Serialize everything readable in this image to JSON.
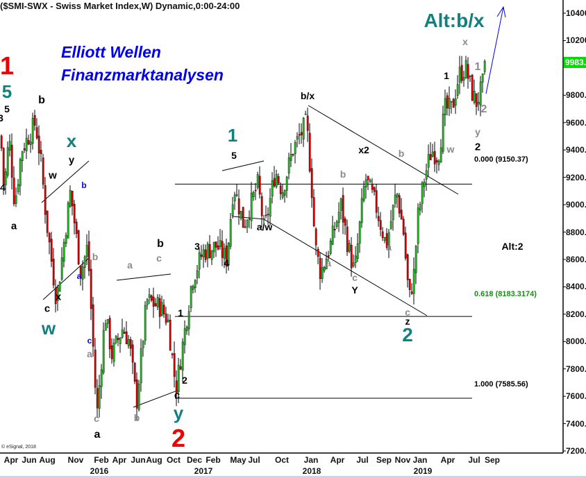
{
  "title": "($SMI-SWX - Swiss Market Index,W) Dynamic,0:00-24:00",
  "branding": {
    "line1": "Elliott Wellen",
    "line2": "Finanzmarktanalysen"
  },
  "copyright": "© eSignal, 2018",
  "colors": {
    "up": "#22bb22",
    "down": "#dd0000",
    "black": "#000000",
    "gray": "#8a8a8a",
    "teal": "#138080",
    "red": "#ee0000",
    "blue": "#0000ee",
    "fib618": "#1a8a1a",
    "last_price_bg": "#00dd00"
  },
  "chart_data": {
    "type": "candlestick",
    "interval": "weekly",
    "symbol": "$SMI-SWX",
    "ylim": [
      7200,
      10400
    ],
    "y_ticks": [
      "10400.00",
      "10200.00",
      "9800.00",
      "9600.00",
      "9400.00",
      "9200.00",
      "9000.00",
      "8800.00",
      "8600.00",
      "8400.00",
      "8200.00",
      "8000.00",
      "7800.00",
      "7600.00",
      "7400.00",
      "7200.00"
    ],
    "x_ticks": [
      "Apr",
      "Jun",
      "Aug",
      "Nov",
      "Feb",
      "Apr",
      "Jun",
      "Aug",
      "Oct",
      "Dec",
      "Feb",
      "May",
      "Jul",
      "Oct",
      "Jan",
      "Apr",
      "Jul",
      "Sep",
      "Nov",
      "Jan",
      "Apr",
      "Jul",
      "Sep"
    ],
    "years": [
      "2016",
      "2017",
      "2018",
      "2019"
    ],
    "last_price": "9983.0703",
    "approx_price_path": [
      [
        "2015-03-01",
        9500
      ],
      [
        "2015-03-12",
        9100
      ],
      [
        "2015-03-29",
        9500
      ],
      [
        "2015-04-17",
        9000
      ],
      [
        "2015-05-10",
        9400
      ],
      [
        "2015-06-26",
        9600
      ],
      [
        "2015-07-15",
        9300
      ],
      [
        "2015-08-01",
        8900
      ],
      [
        "2015-09-05",
        8300
      ],
      [
        "2015-10-22",
        9100
      ],
      [
        "2015-11-26",
        8500
      ],
      [
        "2015-12-19",
        8700
      ],
      [
        "2016-01-19",
        7450
      ],
      [
        "2016-02-16",
        8200
      ],
      [
        "2016-03-10",
        7900
      ],
      [
        "2016-04-15",
        8100
      ],
      [
        "2016-05-07",
        8000
      ],
      [
        "2016-06-01",
        7550
      ],
      [
        "2016-07-05",
        8300
      ],
      [
        "2016-08-22",
        8250
      ],
      [
        "2016-09-15",
        8150
      ],
      [
        "2016-10-12",
        7650
      ],
      [
        "2016-11-12",
        8100
      ],
      [
        "2016-12-05",
        8450
      ],
      [
        "2017-01-10",
        8650
      ],
      [
        "2017-02-26",
        8700
      ],
      [
        "2017-04-01",
        8600
      ],
      [
        "2017-04-24",
        9150
      ],
      [
        "2017-05-28",
        8850
      ],
      [
        "2017-07-15",
        9150
      ],
      [
        "2017-08-06",
        8800
      ],
      [
        "2017-09-12",
        9250
      ],
      [
        "2017-10-05",
        9100
      ],
      [
        "2017-11-10",
        9400
      ],
      [
        "2017-12-26",
        9600
      ],
      [
        "2018-01-12",
        9150
      ],
      [
        "2018-01-24",
        8700
      ],
      [
        "2018-02-12",
        8500
      ],
      [
        "2018-03-16",
        8700
      ],
      [
        "2018-04-21",
        9000
      ],
      [
        "2018-05-15",
        8700
      ],
      [
        "2018-06-06",
        8500
      ],
      [
        "2018-07-12",
        9200
      ],
      [
        "2018-08-16",
        9000
      ],
      [
        "2018-09-21",
        8700
      ],
      [
        "2018-10-26",
        9100
      ],
      [
        "2018-11-18",
        8800
      ],
      [
        "2018-12-07",
        8300
      ],
      [
        "2018-12-24",
        8500
      ],
      [
        "2019-01-05",
        8900
      ],
      [
        "2019-01-28",
        9200
      ],
      [
        "2019-02-21",
        9400
      ],
      [
        "2019-03-15",
        9350
      ],
      [
        "2019-04-07",
        9700
      ],
      [
        "2019-05-01",
        9700
      ],
      [
        "2019-05-24",
        9950
      ],
      [
        "2019-06-16",
        10000
      ],
      [
        "2019-07-10",
        9800
      ],
      [
        "2019-07-22",
        9750
      ],
      [
        "2019-08-10",
        9850
      ],
      [
        "2019-08-19",
        9983
      ]
    ],
    "fib_levels": [
      {
        "label": "0.000 (9150.37)",
        "value": 9150.37
      },
      {
        "label": "0.618 (8183.3174)",
        "value": 8183.3174
      },
      {
        "label": "1.000 (7585.56)",
        "value": 7585.56
      }
    ]
  },
  "wave_labels": [
    {
      "text": "1",
      "color": "red"
    },
    {
      "text": "5",
      "color": "teal"
    },
    {
      "text": "5",
      "color": "black"
    },
    {
      "text": "3",
      "color": "black"
    },
    {
      "text": "4",
      "color": "black"
    },
    {
      "text": "a",
      "color": "black"
    },
    {
      "text": "b",
      "color": "black"
    },
    {
      "text": "x",
      "color": "teal"
    },
    {
      "text": "y",
      "color": "black"
    },
    {
      "text": "w",
      "color": "black"
    },
    {
      "text": "b",
      "color": "blue"
    },
    {
      "text": "b",
      "color": "gray"
    },
    {
      "text": "a",
      "color": "blue"
    },
    {
      "text": "c",
      "color": "black"
    },
    {
      "text": "x",
      "color": "black"
    },
    {
      "text": "w",
      "color": "teal"
    },
    {
      "text": "c",
      "color": "blue"
    },
    {
      "text": "a",
      "color": "gray"
    },
    {
      "text": "c",
      "color": "gray"
    },
    {
      "text": "a",
      "color": "black"
    },
    {
      "text": "a",
      "color": "gray"
    },
    {
      "text": "c",
      "color": "gray"
    },
    {
      "text": "b",
      "color": "black"
    },
    {
      "text": "b",
      "color": "gray"
    },
    {
      "text": "y",
      "color": "teal"
    },
    {
      "text": "2",
      "color": "red"
    },
    {
      "text": "c",
      "color": "black"
    },
    {
      "text": "2",
      "color": "black"
    },
    {
      "text": "1",
      "color": "black"
    },
    {
      "text": "3",
      "color": "black"
    },
    {
      "text": "4",
      "color": "black"
    },
    {
      "text": "5",
      "color": "black"
    },
    {
      "text": "1",
      "color": "teal"
    },
    {
      "text": "a/w",
      "color": "black"
    },
    {
      "text": "b/x",
      "color": "black"
    },
    {
      "text": "Alt:b/x",
      "color": "teal"
    },
    {
      "text": "x2",
      "color": "black"
    },
    {
      "text": "b",
      "color": "gray"
    },
    {
      "text": "b",
      "color": "gray"
    },
    {
      "text": "a",
      "color": "gray"
    },
    {
      "text": "a",
      "color": "gray"
    },
    {
      "text": "c",
      "color": "gray"
    },
    {
      "text": "Y",
      "color": "black"
    },
    {
      "text": "c",
      "color": "gray"
    },
    {
      "text": "z",
      "color": "black"
    },
    {
      "text": "2",
      "color": "teal"
    },
    {
      "text": "1",
      "color": "black"
    },
    {
      "text": "w",
      "color": "gray"
    },
    {
      "text": "x",
      "color": "gray"
    },
    {
      "text": "1",
      "color": "gray"
    },
    {
      "text": "2",
      "color": "gray"
    },
    {
      "text": "y",
      "color": "gray"
    },
    {
      "text": "2",
      "color": "black"
    },
    {
      "text": "Alt:2",
      "color": "black"
    }
  ]
}
